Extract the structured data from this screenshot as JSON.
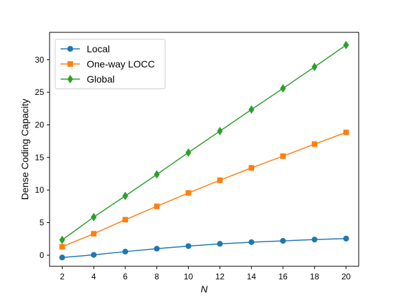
{
  "chart_data": {
    "type": "line",
    "title": "",
    "xlabel": "N",
    "ylabel": "Dense Coding Capacity",
    "x": [
      2,
      4,
      6,
      8,
      10,
      12,
      14,
      16,
      18,
      20
    ],
    "xlim": [
      1.2,
      20.8
    ],
    "ylim": [
      -1.7,
      34.2
    ],
    "xticks": [
      2,
      4,
      6,
      8,
      10,
      12,
      14,
      16,
      18,
      20
    ],
    "yticks": [
      0,
      5,
      10,
      15,
      20,
      25,
      30
    ],
    "grid": false,
    "legend_position": "top-left",
    "series": [
      {
        "name": "Local",
        "marker": "circle",
        "color": "#1f77b4",
        "values": [
          -0.35,
          0.05,
          0.55,
          1.0,
          1.4,
          1.75,
          2.0,
          2.2,
          2.4,
          2.55
        ]
      },
      {
        "name": "One-way LOCC",
        "marker": "square",
        "color": "#ff7f0e",
        "values": [
          1.3,
          3.3,
          5.45,
          7.5,
          9.55,
          11.5,
          13.4,
          15.2,
          17.05,
          18.85
        ]
      },
      {
        "name": "Global",
        "marker": "diamond",
        "color": "#2ca02c",
        "values": [
          2.35,
          5.85,
          9.1,
          12.4,
          15.75,
          19.05,
          22.35,
          25.6,
          28.9,
          32.25
        ]
      }
    ]
  }
}
